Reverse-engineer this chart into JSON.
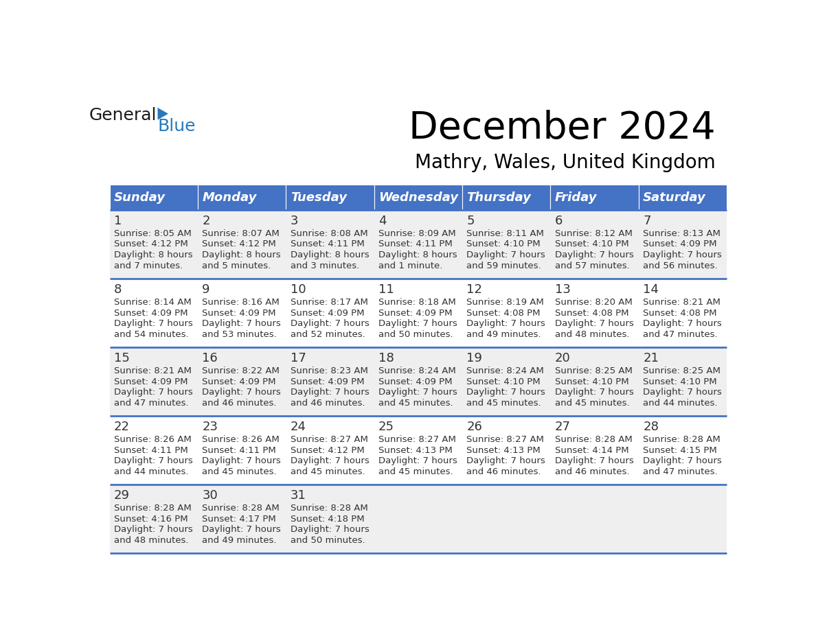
{
  "title": "December 2024",
  "subtitle": "Mathry, Wales, United Kingdom",
  "header_color": "#4472C4",
  "header_text_color": "#FFFFFF",
  "days_of_week": [
    "Sunday",
    "Monday",
    "Tuesday",
    "Wednesday",
    "Thursday",
    "Friday",
    "Saturday"
  ],
  "cell_bg_color": "#EFEFEF",
  "cell_bg_alt": "#FFFFFF",
  "line_color": "#4472C4",
  "day_number_color": "#333333",
  "text_color": "#333333",
  "logo_general_color": "#1a1a1a",
  "logo_blue_color": "#2779BD",
  "weeks": [
    [
      {
        "day": 1,
        "sunrise": "8:05 AM",
        "sunset": "4:12 PM",
        "daylight": "8 hours",
        "daylight2": "and 7 minutes."
      },
      {
        "day": 2,
        "sunrise": "8:07 AM",
        "sunset": "4:12 PM",
        "daylight": "8 hours",
        "daylight2": "and 5 minutes."
      },
      {
        "day": 3,
        "sunrise": "8:08 AM",
        "sunset": "4:11 PM",
        "daylight": "8 hours",
        "daylight2": "and 3 minutes."
      },
      {
        "day": 4,
        "sunrise": "8:09 AM",
        "sunset": "4:11 PM",
        "daylight": "8 hours",
        "daylight2": "and 1 minute."
      },
      {
        "day": 5,
        "sunrise": "8:11 AM",
        "sunset": "4:10 PM",
        "daylight": "7 hours",
        "daylight2": "and 59 minutes."
      },
      {
        "day": 6,
        "sunrise": "8:12 AM",
        "sunset": "4:10 PM",
        "daylight": "7 hours",
        "daylight2": "and 57 minutes."
      },
      {
        "day": 7,
        "sunrise": "8:13 AM",
        "sunset": "4:09 PM",
        "daylight": "7 hours",
        "daylight2": "and 56 minutes."
      }
    ],
    [
      {
        "day": 8,
        "sunrise": "8:14 AM",
        "sunset": "4:09 PM",
        "daylight": "7 hours",
        "daylight2": "and 54 minutes."
      },
      {
        "day": 9,
        "sunrise": "8:16 AM",
        "sunset": "4:09 PM",
        "daylight": "7 hours",
        "daylight2": "and 53 minutes."
      },
      {
        "day": 10,
        "sunrise": "8:17 AM",
        "sunset": "4:09 PM",
        "daylight": "7 hours",
        "daylight2": "and 52 minutes."
      },
      {
        "day": 11,
        "sunrise": "8:18 AM",
        "sunset": "4:09 PM",
        "daylight": "7 hours",
        "daylight2": "and 50 minutes."
      },
      {
        "day": 12,
        "sunrise": "8:19 AM",
        "sunset": "4:08 PM",
        "daylight": "7 hours",
        "daylight2": "and 49 minutes."
      },
      {
        "day": 13,
        "sunrise": "8:20 AM",
        "sunset": "4:08 PM",
        "daylight": "7 hours",
        "daylight2": "and 48 minutes."
      },
      {
        "day": 14,
        "sunrise": "8:21 AM",
        "sunset": "4:08 PM",
        "daylight": "7 hours",
        "daylight2": "and 47 minutes."
      }
    ],
    [
      {
        "day": 15,
        "sunrise": "8:21 AM",
        "sunset": "4:09 PM",
        "daylight": "7 hours",
        "daylight2": "and 47 minutes."
      },
      {
        "day": 16,
        "sunrise": "8:22 AM",
        "sunset": "4:09 PM",
        "daylight": "7 hours",
        "daylight2": "and 46 minutes."
      },
      {
        "day": 17,
        "sunrise": "8:23 AM",
        "sunset": "4:09 PM",
        "daylight": "7 hours",
        "daylight2": "and 46 minutes."
      },
      {
        "day": 18,
        "sunrise": "8:24 AM",
        "sunset": "4:09 PM",
        "daylight": "7 hours",
        "daylight2": "and 45 minutes."
      },
      {
        "day": 19,
        "sunrise": "8:24 AM",
        "sunset": "4:10 PM",
        "daylight": "7 hours",
        "daylight2": "and 45 minutes."
      },
      {
        "day": 20,
        "sunrise": "8:25 AM",
        "sunset": "4:10 PM",
        "daylight": "7 hours",
        "daylight2": "and 45 minutes."
      },
      {
        "day": 21,
        "sunrise": "8:25 AM",
        "sunset": "4:10 PM",
        "daylight": "7 hours",
        "daylight2": "and 44 minutes."
      }
    ],
    [
      {
        "day": 22,
        "sunrise": "8:26 AM",
        "sunset": "4:11 PM",
        "daylight": "7 hours",
        "daylight2": "and 44 minutes."
      },
      {
        "day": 23,
        "sunrise": "8:26 AM",
        "sunset": "4:11 PM",
        "daylight": "7 hours",
        "daylight2": "and 45 minutes."
      },
      {
        "day": 24,
        "sunrise": "8:27 AM",
        "sunset": "4:12 PM",
        "daylight": "7 hours",
        "daylight2": "and 45 minutes."
      },
      {
        "day": 25,
        "sunrise": "8:27 AM",
        "sunset": "4:13 PM",
        "daylight": "7 hours",
        "daylight2": "and 45 minutes."
      },
      {
        "day": 26,
        "sunrise": "8:27 AM",
        "sunset": "4:13 PM",
        "daylight": "7 hours",
        "daylight2": "and 46 minutes."
      },
      {
        "day": 27,
        "sunrise": "8:28 AM",
        "sunset": "4:14 PM",
        "daylight": "7 hours",
        "daylight2": "and 46 minutes."
      },
      {
        "day": 28,
        "sunrise": "8:28 AM",
        "sunset": "4:15 PM",
        "daylight": "7 hours",
        "daylight2": "and 47 minutes."
      }
    ],
    [
      {
        "day": 29,
        "sunrise": "8:28 AM",
        "sunset": "4:16 PM",
        "daylight": "7 hours",
        "daylight2": "and 48 minutes."
      },
      {
        "day": 30,
        "sunrise": "8:28 AM",
        "sunset": "4:17 PM",
        "daylight": "7 hours",
        "daylight2": "and 49 minutes."
      },
      {
        "day": 31,
        "sunrise": "8:28 AM",
        "sunset": "4:18 PM",
        "daylight": "7 hours",
        "daylight2": "and 50 minutes."
      },
      null,
      null,
      null,
      null
    ]
  ]
}
